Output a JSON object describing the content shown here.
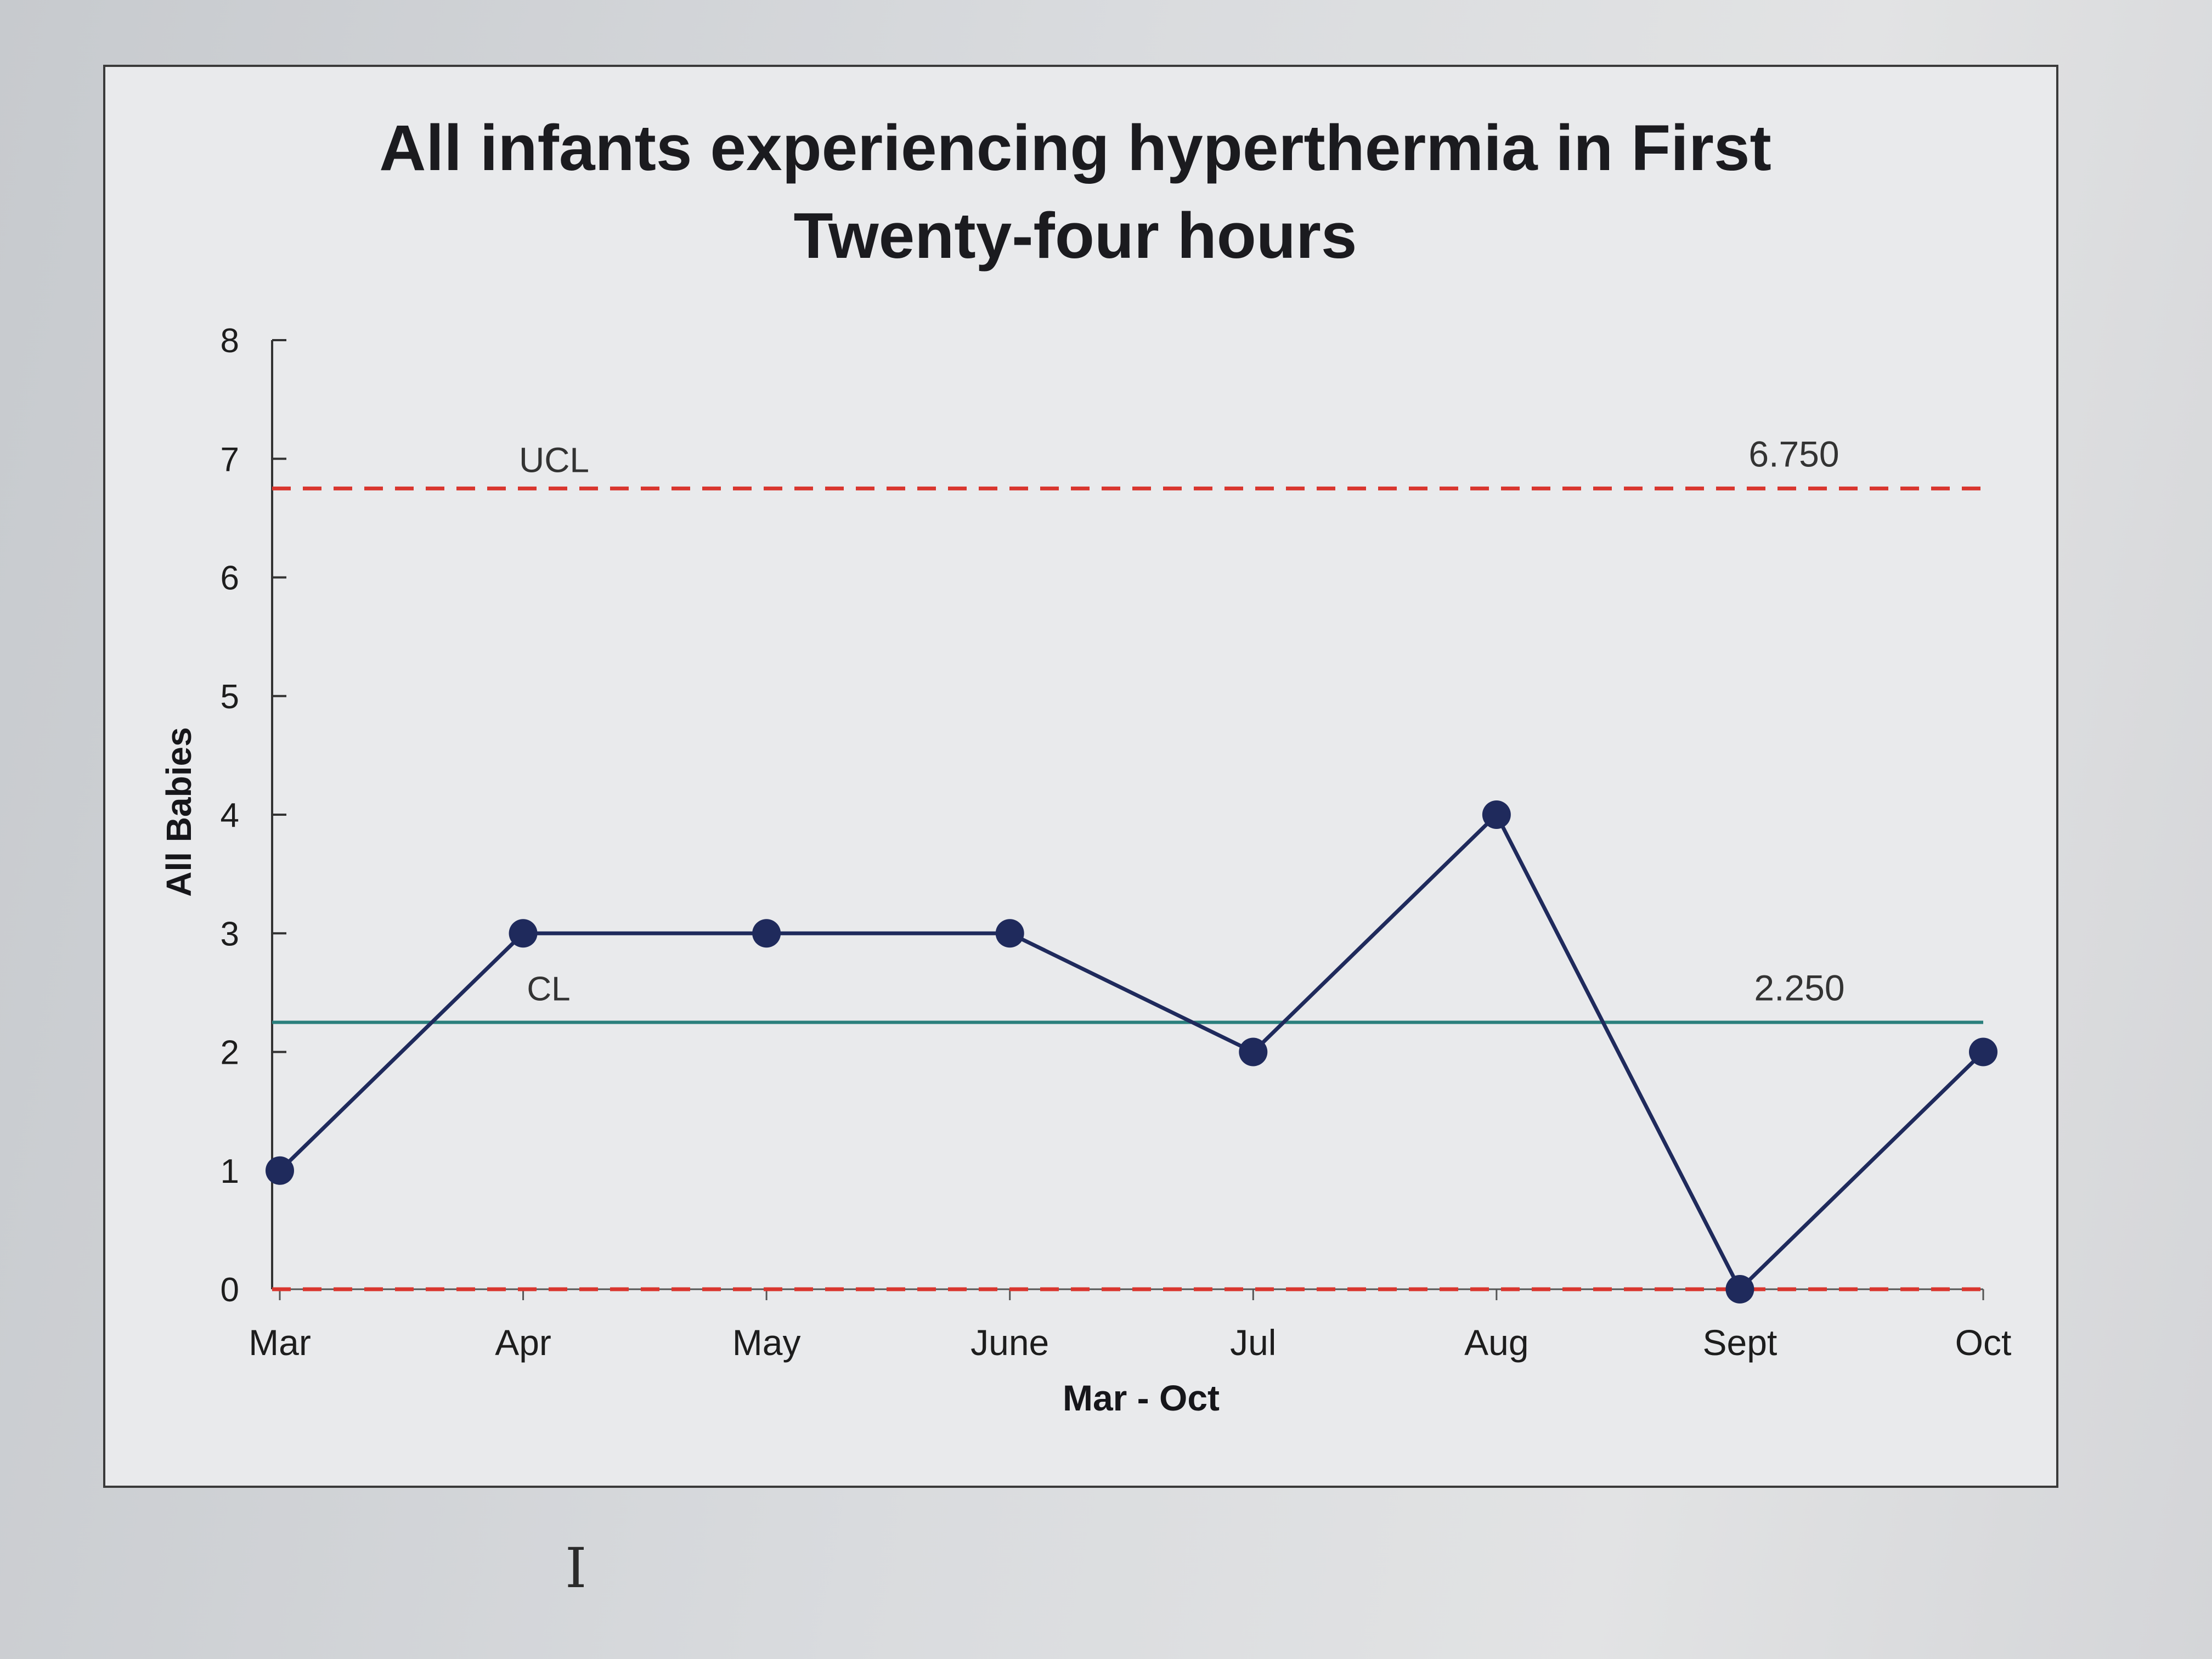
{
  "chart_data": {
    "type": "line",
    "title_lines": [
      "All infants experiencing hyperthermia in First",
      "Twenty-four hours"
    ],
    "xlabel": "Mar - Oct",
    "ylabel": "All Babies",
    "categories": [
      "Mar",
      "Apr",
      "May",
      "June",
      "Jul",
      "Aug",
      "Sept",
      "Oct"
    ],
    "series": [
      {
        "values": [
          1,
          3,
          3,
          3,
          2,
          4,
          0,
          2
        ],
        "color": "#1f2a5c",
        "marker": "circle"
      }
    ],
    "ylim": [
      0,
      8
    ],
    "yticks": [
      0,
      1,
      2,
      3,
      4,
      5,
      6,
      7,
      8
    ],
    "control_limits": {
      "ucl": {
        "label": "UCL",
        "value": 6.75,
        "value_label": "6.750",
        "color": "#d9362e",
        "style": "dashed"
      },
      "cl": {
        "label": "CL",
        "value": 2.25,
        "value_label": "2.250",
        "color": "#2a7f7c",
        "style": "solid"
      },
      "lcl": {
        "value": 0,
        "color": "#d9362e",
        "style": "dashed"
      }
    },
    "grid": false,
    "legend": "none"
  },
  "ui": {
    "cursor_glyph": "I"
  }
}
